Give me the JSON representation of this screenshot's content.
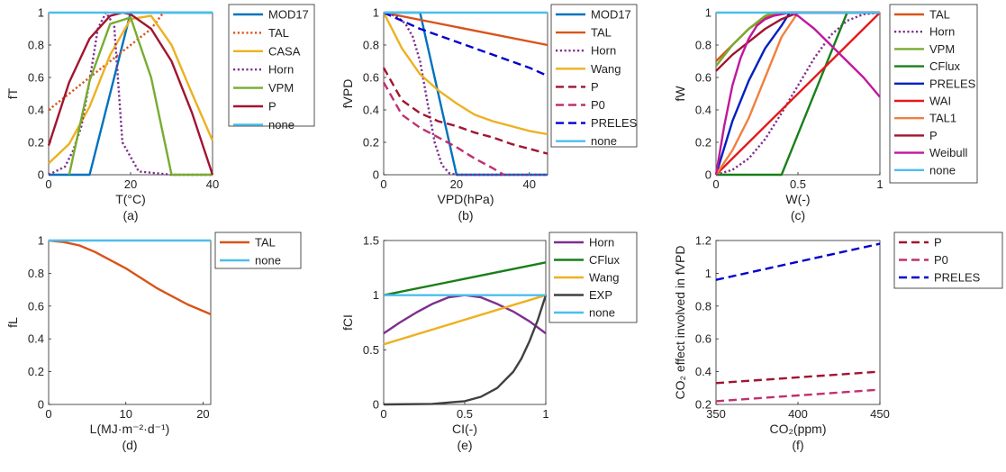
{
  "figure": {
    "panels": [
      {
        "panel_label": "(a)",
        "xlabel": "T(°C)",
        "ylabel": "fT",
        "xlim": [
          0,
          40
        ],
        "ylim": [
          0,
          1
        ],
        "xticks": [
          0,
          20,
          40
        ],
        "yticks": [
          0,
          0.2,
          0.4,
          0.6,
          0.8,
          1
        ],
        "legend": [
          "MOD17",
          "TAL",
          "CASA",
          "Horn",
          "VPM",
          "P",
          "none"
        ]
      },
      {
        "panel_label": "(b)",
        "xlabel": "VPD(hPa)",
        "ylabel": "fVPD",
        "xlim": [
          0,
          45
        ],
        "ylim": [
          0,
          1
        ],
        "xticks": [
          0,
          20,
          40
        ],
        "yticks": [
          0,
          0.2,
          0.4,
          0.6,
          0.8,
          1
        ],
        "legend": [
          "MOD17",
          "TAL",
          "Horn",
          "Wang",
          "P",
          "P0",
          "PRELES",
          "none"
        ]
      },
      {
        "panel_label": "(c)",
        "xlabel": "W(-)",
        "ylabel": "fW",
        "xlim": [
          0,
          1
        ],
        "ylim": [
          0,
          1
        ],
        "xticks": [
          0,
          0.5,
          1
        ],
        "yticks": [
          0,
          0.2,
          0.4,
          0.6,
          0.8,
          1
        ],
        "legend": [
          "TAL",
          "Horn",
          "VPM",
          "CFlux",
          "PRELES",
          "WAI",
          "TAL1",
          "P",
          "Weibull",
          "none"
        ]
      },
      {
        "panel_label": "(d)",
        "xlabel": "L(MJ·m⁻²·d⁻¹)",
        "ylabel": "fL",
        "xlim": [
          0,
          21
        ],
        "ylim": [
          0,
          1
        ],
        "xticks": [
          0,
          10,
          20
        ],
        "yticks": [
          0,
          0.2,
          0.4,
          0.6,
          0.8,
          1
        ],
        "legend": [
          "TAL",
          "none"
        ]
      },
      {
        "panel_label": "(e)",
        "xlabel": "CI(-)",
        "ylabel": "fCI",
        "xlim": [
          0,
          1
        ],
        "ylim": [
          0,
          1.5
        ],
        "xticks": [
          0,
          0.5,
          1
        ],
        "yticks": [
          0,
          0.5,
          1,
          1.5
        ],
        "legend": [
          "Horn",
          "CFlux",
          "Wang",
          "EXP",
          "none"
        ]
      },
      {
        "panel_label": "(f)",
        "xlabel": "CO₂(ppm)",
        "ylabel": "CO₂ effect involved in fVPD",
        "xlim": [
          350,
          450
        ],
        "ylim": [
          0.2,
          1.2
        ],
        "xticks": [
          350,
          400,
          450
        ],
        "yticks": [
          0.2,
          0.4,
          0.6,
          0.8,
          1,
          1.2
        ],
        "legend": [
          "P",
          "P0",
          "PRELES"
        ]
      }
    ]
  },
  "chart_data": [
    {
      "type": "line",
      "xlabel": "T(°C)",
      "ylabel": "fT",
      "xlim": [
        0,
        40
      ],
      "ylim": [
        0,
        1
      ],
      "legend": "right",
      "series": [
        {
          "name": "MOD17",
          "color": "#0072BD",
          "dash": "solid",
          "x": [
            0,
            10,
            20,
            40
          ],
          "y": [
            0,
            0,
            1,
            1
          ]
        },
        {
          "name": "TAL",
          "color": "#D95319",
          "dash": "dotted",
          "x": [
            0,
            5,
            10,
            15,
            20,
            25,
            28
          ],
          "y": [
            0.4,
            0.5,
            0.6,
            0.7,
            0.8,
            0.9,
            1
          ]
        },
        {
          "name": "CASA",
          "color": "#EDB120",
          "dash": "solid",
          "x": [
            0,
            5,
            10,
            15,
            20,
            25,
            30,
            35,
            40
          ],
          "y": [
            0.07,
            0.19,
            0.42,
            0.74,
            0.96,
            0.98,
            0.8,
            0.5,
            0.21
          ]
        },
        {
          "name": "Horn",
          "color": "#7E2F8E",
          "dash": "dotted",
          "x": [
            0,
            4,
            6,
            8,
            10,
            12,
            14,
            16,
            18,
            22,
            30,
            40
          ],
          "y": [
            0,
            0.05,
            0.15,
            0.3,
            0.58,
            0.9,
            1,
            0.92,
            0.2,
            0.02,
            0,
            0
          ]
        },
        {
          "name": "VPM",
          "color": "#77AC30",
          "dash": "solid",
          "x": [
            5,
            10,
            15,
            20,
            25,
            30,
            40
          ],
          "y": [
            0,
            0.58,
            0.93,
            0.97,
            0.6,
            0,
            0
          ]
        },
        {
          "name": "P",
          "color": "#A2142F",
          "dash": "solid",
          "x": [
            0,
            5,
            10,
            15,
            18,
            20,
            25,
            30,
            35,
            40
          ],
          "y": [
            0.18,
            0.57,
            0.84,
            0.98,
            1,
            0.99,
            0.9,
            0.7,
            0.38,
            0
          ]
        },
        {
          "name": "none",
          "color": "#4DBEEE",
          "dash": "solid",
          "x": [
            0,
            40
          ],
          "y": [
            1,
            1
          ]
        }
      ]
    },
    {
      "type": "line",
      "xlabel": "VPD(hPa)",
      "ylabel": "fVPD",
      "xlim": [
        0,
        45
      ],
      "ylim": [
        0,
        1
      ],
      "legend": "right",
      "series": [
        {
          "name": "MOD17",
          "color": "#0072BD",
          "dash": "solid",
          "x": [
            0,
            10,
            20,
            45
          ],
          "y": [
            1,
            1,
            0,
            0
          ]
        },
        {
          "name": "TAL",
          "color": "#D95319",
          "dash": "solid",
          "x": [
            0,
            45
          ],
          "y": [
            1,
            0.8
          ]
        },
        {
          "name": "Horn",
          "color": "#7E2F8E",
          "dash": "dotted",
          "x": [
            0,
            2,
            4,
            6,
            8,
            10,
            12,
            14,
            16,
            18,
            20,
            45
          ],
          "y": [
            1,
            0.99,
            0.97,
            0.93,
            0.85,
            0.7,
            0.45,
            0.2,
            0.06,
            0.01,
            0,
            0
          ]
        },
        {
          "name": "Wang",
          "color": "#EDB120",
          "dash": "solid",
          "x": [
            0,
            5,
            10,
            15,
            20,
            25,
            30,
            35,
            40,
            45
          ],
          "y": [
            1,
            0.78,
            0.62,
            0.52,
            0.44,
            0.37,
            0.33,
            0.3,
            0.27,
            0.25
          ]
        },
        {
          "name": "P",
          "color": "#A2142F",
          "dash": "dashed",
          "x": [
            0,
            5,
            10,
            15,
            20,
            25,
            30,
            35,
            40,
            45
          ],
          "y": [
            0.66,
            0.46,
            0.38,
            0.33,
            0.3,
            0.26,
            0.23,
            0.19,
            0.16,
            0.13
          ]
        },
        {
          "name": "P0",
          "color": "#C0306F",
          "dash": "dashed",
          "x": [
            0,
            5,
            10,
            15,
            20,
            25,
            30,
            33
          ],
          "y": [
            0.57,
            0.37,
            0.29,
            0.23,
            0.17,
            0.1,
            0.04,
            0
          ]
        },
        {
          "name": "PRELES",
          "color": "#0000CC",
          "dash": "dashed",
          "x": [
            0,
            10,
            20,
            30,
            40,
            45
          ],
          "y": [
            1,
            0.9,
            0.82,
            0.74,
            0.66,
            0.61
          ]
        },
        {
          "name": "none",
          "color": "#4DBEEE",
          "dash": "solid",
          "x": [
            0,
            45
          ],
          "y": [
            1,
            1
          ]
        }
      ]
    },
    {
      "type": "line",
      "xlabel": "W(-)",
      "ylabel": "fW",
      "xlim": [
        0,
        1
      ],
      "ylim": [
        0,
        1
      ],
      "legend": "right",
      "series": [
        {
          "name": "TAL",
          "color": "#D95319",
          "dash": "solid",
          "x": [
            0,
            0.1,
            0.2,
            0.3,
            0.4,
            0.5,
            0.6,
            1
          ],
          "y": [
            0.7,
            0.8,
            0.9,
            0.97,
            1,
            1,
            1,
            1
          ]
        },
        {
          "name": "Horn",
          "color": "#7E2F8E",
          "dash": "dotted",
          "x": [
            0,
            0.1,
            0.2,
            0.3,
            0.4,
            0.5,
            0.6,
            0.7,
            0.8,
            0.9,
            1
          ],
          "y": [
            0,
            0.03,
            0.1,
            0.22,
            0.38,
            0.55,
            0.72,
            0.86,
            0.95,
            0.99,
            1
          ]
        },
        {
          "name": "VPM",
          "color": "#77AC30",
          "dash": "solid",
          "x": [
            0,
            0.1,
            0.2,
            0.3,
            0.35,
            1
          ],
          "y": [
            0.67,
            0.8,
            0.9,
            0.98,
            1,
            1
          ]
        },
        {
          "name": "CFlux",
          "color": "#1A7F1A",
          "dash": "solid",
          "x": [
            0,
            0.4,
            0.8,
            1
          ],
          "y": [
            0,
            0,
            1,
            1
          ]
        },
        {
          "name": "PRELES",
          "color": "#0020C0",
          "dash": "solid",
          "x": [
            0,
            0.1,
            0.2,
            0.3,
            0.4,
            0.45,
            1
          ],
          "y": [
            0,
            0.33,
            0.58,
            0.78,
            0.92,
            1,
            1
          ]
        },
        {
          "name": "WAI",
          "color": "#E41A1C",
          "dash": "solid",
          "x": [
            0,
            1
          ],
          "y": [
            0,
            1
          ]
        },
        {
          "name": "TAL1",
          "color": "#F08040",
          "dash": "solid",
          "x": [
            0,
            0.1,
            0.2,
            0.3,
            0.4,
            0.5,
            1
          ],
          "y": [
            0,
            0.15,
            0.35,
            0.6,
            0.85,
            1,
            1
          ]
        },
        {
          "name": "P",
          "color": "#A2142F",
          "dash": "solid",
          "x": [
            0,
            0.1,
            0.2,
            0.3,
            0.4,
            0.5,
            1
          ],
          "y": [
            0.64,
            0.74,
            0.82,
            0.9,
            0.96,
            1,
            1
          ]
        },
        {
          "name": "Weibull",
          "color": "#C0189C",
          "dash": "solid",
          "x": [
            0,
            0.05,
            0.1,
            0.15,
            0.2,
            0.25,
            0.3,
            0.35,
            0.4,
            0.45,
            0.5,
            0.6,
            0.7,
            0.8,
            0.9,
            1
          ],
          "y": [
            0,
            0.3,
            0.55,
            0.72,
            0.84,
            0.92,
            0.96,
            0.98,
            0.99,
            1,
            0.98,
            0.9,
            0.8,
            0.7,
            0.6,
            0.48
          ]
        },
        {
          "name": "none",
          "color": "#4DBEEE",
          "dash": "solid",
          "x": [
            0,
            1
          ],
          "y": [
            1,
            1
          ]
        }
      ]
    },
    {
      "type": "line",
      "xlabel": "L(MJ·m⁻²·d⁻¹)",
      "ylabel": "fL",
      "xlim": [
        0,
        21
      ],
      "ylim": [
        0,
        1
      ],
      "legend": "right",
      "series": [
        {
          "name": "TAL",
          "color": "#D95319",
          "dash": "solid",
          "x": [
            0,
            2,
            4,
            6,
            8,
            10,
            12,
            14,
            16,
            18,
            21
          ],
          "y": [
            1,
            0.99,
            0.97,
            0.93,
            0.88,
            0.83,
            0.77,
            0.71,
            0.66,
            0.61,
            0.55
          ]
        },
        {
          "name": "none",
          "color": "#4DBEEE",
          "dash": "solid",
          "x": [
            0,
            21
          ],
          "y": [
            1,
            1
          ]
        }
      ]
    },
    {
      "type": "line",
      "xlabel": "CI(-)",
      "ylabel": "fCI",
      "xlim": [
        0,
        1
      ],
      "ylim": [
        0,
        1.5
      ],
      "legend": "right",
      "series": [
        {
          "name": "Horn",
          "color": "#7E2F8E",
          "dash": "solid",
          "x": [
            0,
            0.1,
            0.2,
            0.3,
            0.4,
            0.5,
            0.6,
            0.7,
            0.8,
            0.9,
            1
          ],
          "y": [
            0.65,
            0.75,
            0.84,
            0.92,
            0.98,
            1,
            0.98,
            0.92,
            0.85,
            0.76,
            0.65
          ]
        },
        {
          "name": "CFlux",
          "color": "#1A7F1A",
          "dash": "solid",
          "x": [
            0,
            1
          ],
          "y": [
            1,
            1.3
          ]
        },
        {
          "name": "Wang",
          "color": "#EDB120",
          "dash": "solid",
          "x": [
            0,
            1
          ],
          "y": [
            0.55,
            1
          ]
        },
        {
          "name": "EXP",
          "color": "#404040",
          "dash": "solid",
          "x": [
            0,
            0.3,
            0.5,
            0.6,
            0.7,
            0.8,
            0.85,
            0.9,
            0.95,
            1
          ],
          "y": [
            0,
            0.005,
            0.03,
            0.07,
            0.15,
            0.3,
            0.42,
            0.58,
            0.77,
            1
          ]
        },
        {
          "name": "none",
          "color": "#4DBEEE",
          "dash": "solid",
          "x": [
            0,
            1
          ],
          "y": [
            1,
            1
          ]
        }
      ]
    },
    {
      "type": "line",
      "xlabel": "CO₂(ppm)",
      "ylabel": "CO₂ effect involved in fVPD",
      "xlim": [
        350,
        450
      ],
      "ylim": [
        0.2,
        1.2
      ],
      "legend": "right",
      "series": [
        {
          "name": "P",
          "color": "#A2142F",
          "dash": "dashed",
          "x": [
            350,
            450
          ],
          "y": [
            0.33,
            0.4
          ]
        },
        {
          "name": "P0",
          "color": "#C0306F",
          "dash": "dashed",
          "x": [
            350,
            450
          ],
          "y": [
            0.22,
            0.29
          ]
        },
        {
          "name": "PRELES",
          "color": "#0000CC",
          "dash": "dashed",
          "x": [
            350,
            450
          ],
          "y": [
            0.96,
            1.18
          ]
        }
      ]
    }
  ]
}
